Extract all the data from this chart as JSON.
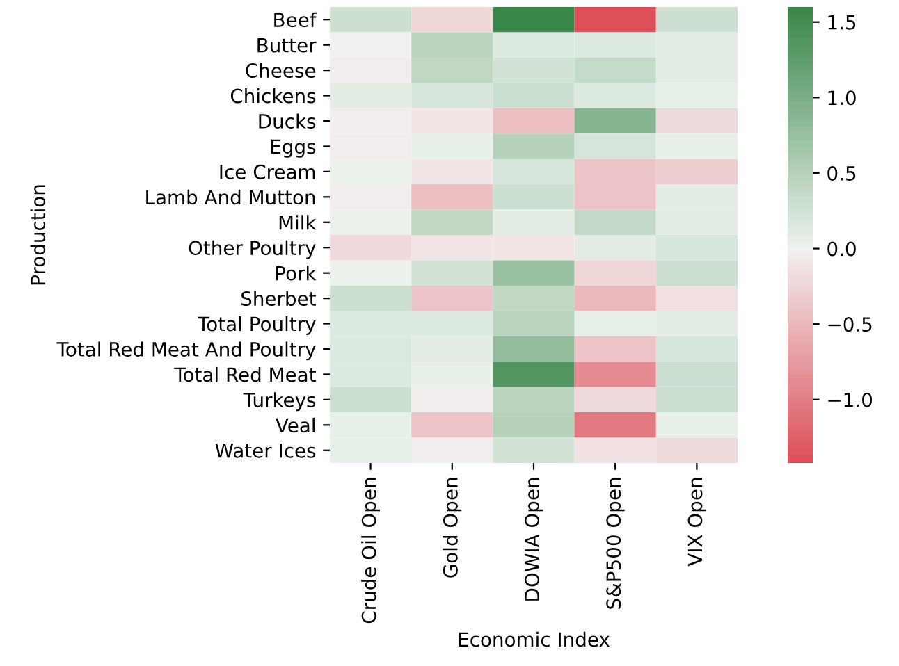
{
  "chart_data": {
    "type": "heatmap",
    "xlabel": "Economic Index",
    "ylabel": "Production",
    "categories": [
      "Crude Oil Open",
      "Gold Open",
      "DOWIA Open",
      "S&P500 Open",
      "VIX Open"
    ],
    "y_categories": [
      "Beef",
      "Butter",
      "Cheese",
      "Chickens",
      "Ducks",
      "Eggs",
      "Ice Cream",
      "Lamb And Mutton",
      "Milk",
      "Other Poultry",
      "Pork",
      "Sherbet",
      "Total Poultry",
      "Total Red Meat And Poultry",
      "Total Red Meat",
      "Turkeys",
      "Veal",
      "Water Ices"
    ],
    "cells": [
      [
        0.3,
        -0.25,
        1.6,
        -1.42,
        0.3
      ],
      [
        0.0,
        0.45,
        0.15,
        0.15,
        0.1
      ],
      [
        -0.05,
        0.4,
        0.25,
        0.35,
        0.1
      ],
      [
        0.1,
        0.2,
        0.3,
        0.15,
        0.05
      ],
      [
        -0.03,
        -0.1,
        -0.45,
        0.9,
        -0.2
      ],
      [
        -0.05,
        0.05,
        0.5,
        0.2,
        0.05
      ],
      [
        0.03,
        -0.12,
        0.2,
        -0.4,
        -0.3
      ],
      [
        -0.04,
        -0.45,
        0.3,
        -0.4,
        0.1
      ],
      [
        0.03,
        0.4,
        0.1,
        0.38,
        0.1
      ],
      [
        -0.2,
        -0.1,
        -0.1,
        0.1,
        0.2
      ],
      [
        0.03,
        0.25,
        0.75,
        -0.25,
        0.3
      ],
      [
        0.3,
        -0.4,
        0.4,
        -0.5,
        -0.15
      ],
      [
        0.15,
        0.15,
        0.45,
        0.05,
        0.1
      ],
      [
        0.15,
        0.1,
        0.8,
        -0.4,
        0.2
      ],
      [
        0.15,
        0.05,
        1.35,
        -0.9,
        0.3
      ],
      [
        0.3,
        -0.05,
        0.45,
        -0.2,
        0.3
      ],
      [
        0.05,
        -0.4,
        0.5,
        -1.05,
        0.05
      ],
      [
        0.05,
        -0.05,
        0.25,
        -0.15,
        -0.2
      ]
    ],
    "clim": [
      -1.42,
      1.6
    ],
    "cticks": [
      {
        "value": -1.0,
        "label": "−1.0"
      },
      {
        "value": -0.5,
        "label": "−0.5"
      },
      {
        "value": 0.0,
        "label": "0.0"
      },
      {
        "value": 0.5,
        "label": "0.5"
      },
      {
        "value": 1.0,
        "label": "1.0"
      },
      {
        "value": 1.5,
        "label": "1.5"
      }
    ]
  }
}
